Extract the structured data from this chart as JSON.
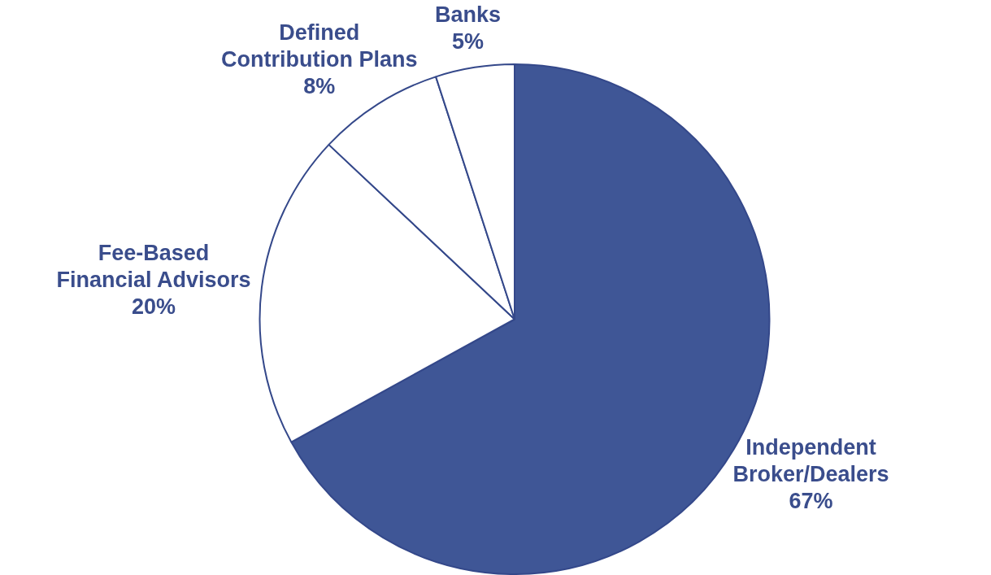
{
  "chart_data": {
    "type": "pie",
    "categories": [
      "Independent Broker/Dealers",
      "Fee-Based Financial Advisors",
      "Defined Contribution Plans",
      "Banks"
    ],
    "values": [
      67,
      20,
      8,
      5
    ],
    "value_labels": [
      "67%",
      "20%",
      "8%",
      "5%"
    ],
    "colors": [
      "#3f5696",
      "#ffffff",
      "#ffffff",
      "#ffffff"
    ],
    "legend": false
  }
}
